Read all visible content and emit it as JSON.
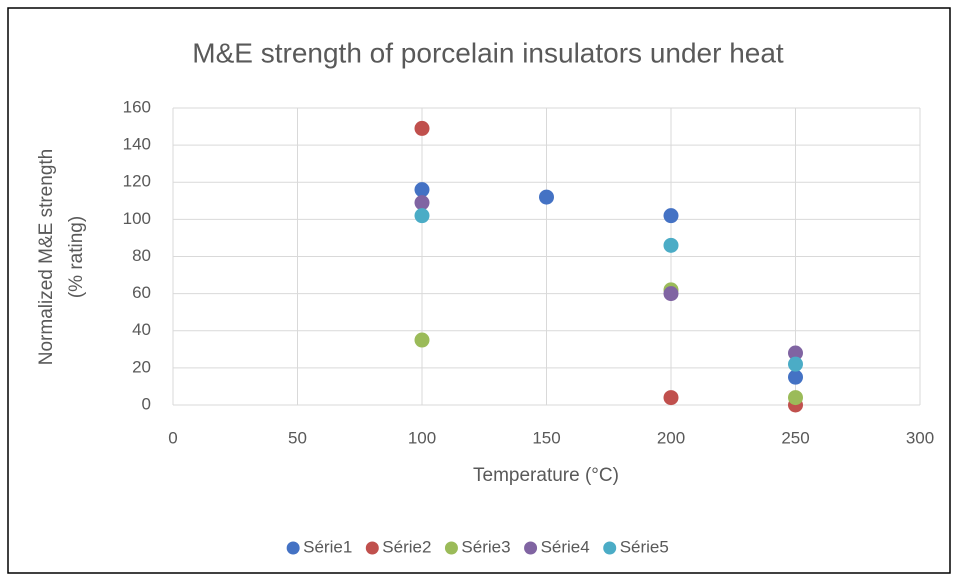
{
  "chart_data": {
    "type": "scatter",
    "title": "M&E strength of porcelain insulators under heat",
    "x_label": "Temperature (°C)",
    "y_label": [
      "Normalized M&E strength",
      "(% rating)"
    ],
    "xlim": [
      0,
      300
    ],
    "xticks": [
      0,
      50,
      100,
      150,
      200,
      250,
      300
    ],
    "ylim": [
      0,
      160
    ],
    "yticks": [
      0,
      20,
      40,
      60,
      80,
      100,
      120,
      140,
      160
    ],
    "grid": true,
    "legend": "bottom",
    "series": [
      {
        "name": "Série1",
        "color": "#4472c4",
        "x": [
          100,
          150,
          200,
          250
        ],
        "values": [
          116,
          112,
          102,
          15
        ]
      },
      {
        "name": "Série2",
        "color": "#c0504d",
        "x": [
          100,
          200,
          250
        ],
        "values": [
          149,
          4,
          0
        ]
      },
      {
        "name": "Série3",
        "color": "#9bbb59",
        "x": [
          100,
          200,
          250
        ],
        "values": [
          35,
          62,
          4
        ]
      },
      {
        "name": "Série4",
        "color": "#8064a2",
        "x": [
          100,
          200,
          250
        ],
        "values": [
          109,
          60,
          28
        ]
      },
      {
        "name": "Série5",
        "color": "#4bacc6",
        "x": [
          100,
          200,
          250
        ],
        "values": [
          102,
          86,
          22
        ]
      }
    ]
  }
}
